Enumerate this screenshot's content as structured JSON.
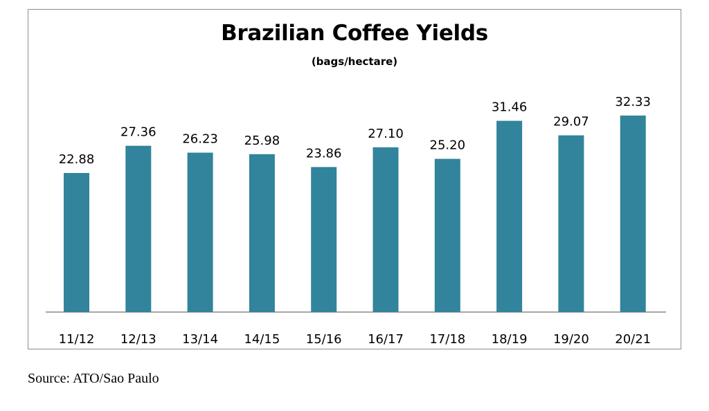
{
  "chart_data": {
    "type": "bar",
    "title": "Brazilian Coffee Yields",
    "subtitle": "(bags/hectare)",
    "categories": [
      "11/12",
      "12/13",
      "13/14",
      "14/15",
      "15/16",
      "16/17",
      "17/18",
      "18/19",
      "19/20",
      "20/21"
    ],
    "values": [
      22.88,
      27.36,
      26.23,
      25.98,
      23.86,
      27.1,
      25.2,
      31.46,
      29.07,
      32.33
    ],
    "value_labels": [
      "22.88",
      "27.36",
      "26.23",
      "25.98",
      "23.86",
      "27.10",
      "25.20",
      "31.46",
      "29.07",
      "32.33"
    ],
    "xlabel": "",
    "ylabel": "",
    "ylim": [
      0,
      32.33
    ],
    "grid": false,
    "legend": "none",
    "bar_color": "#31849b"
  },
  "source": "Source: ATO/Sao Paulo"
}
